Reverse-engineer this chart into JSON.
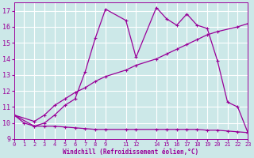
{
  "background_color": "#cce8e8",
  "grid_color": "#ffffff",
  "line_color": "#990099",
  "xlabel": "Windchill (Refroidissement éolien,°C)",
  "xlim": [
    0,
    23
  ],
  "ylim": [
    9,
    17.5
  ],
  "yticks": [
    9,
    10,
    11,
    12,
    13,
    14,
    15,
    16,
    17
  ],
  "xtick_positions": [
    0,
    1,
    2,
    3,
    4,
    5,
    6,
    7,
    8,
    9,
    11,
    12,
    14,
    15,
    16,
    17,
    18,
    19,
    20,
    21,
    22,
    23
  ],
  "xtick_labels": [
    "0",
    "1",
    "2",
    "3",
    "4",
    "5",
    "6",
    "7",
    "8",
    "9",
    "11",
    "12",
    "14",
    "15",
    "16",
    "17",
    "18",
    "19",
    "20",
    "21",
    "22",
    "23"
  ],
  "line1_x": [
    0,
    1,
    2,
    3,
    4,
    5,
    6,
    7,
    8,
    9,
    11,
    12,
    14,
    15,
    16,
    17,
    18,
    19,
    20,
    21,
    22,
    23
  ],
  "line1_y": [
    10.5,
    10.0,
    9.8,
    9.8,
    9.8,
    9.75,
    9.7,
    9.65,
    9.6,
    9.6,
    9.6,
    9.6,
    9.6,
    9.6,
    9.6,
    9.6,
    9.6,
    9.55,
    9.55,
    9.5,
    9.45,
    9.4
  ],
  "line2_x": [
    0,
    2,
    3,
    4,
    5,
    6,
    7,
    8,
    9,
    11,
    12,
    14,
    15,
    16,
    17,
    18,
    19,
    20,
    22,
    23
  ],
  "line2_y": [
    10.5,
    10.1,
    10.5,
    11.1,
    11.5,
    11.9,
    12.2,
    12.6,
    12.9,
    13.3,
    13.6,
    14.0,
    14.3,
    14.6,
    14.9,
    15.2,
    15.5,
    15.7,
    16.0,
    16.2
  ],
  "line3_x": [
    0,
    2,
    3,
    4,
    5,
    6,
    7,
    8,
    9,
    11,
    12,
    14,
    15,
    16,
    17,
    18,
    19,
    20,
    21,
    22,
    23
  ],
  "line3_y": [
    10.5,
    9.8,
    10.0,
    10.5,
    11.1,
    11.5,
    13.2,
    15.3,
    17.1,
    16.4,
    14.1,
    17.2,
    16.5,
    16.1,
    16.8,
    16.1,
    15.9,
    13.9,
    11.3,
    11.0,
    9.4
  ]
}
